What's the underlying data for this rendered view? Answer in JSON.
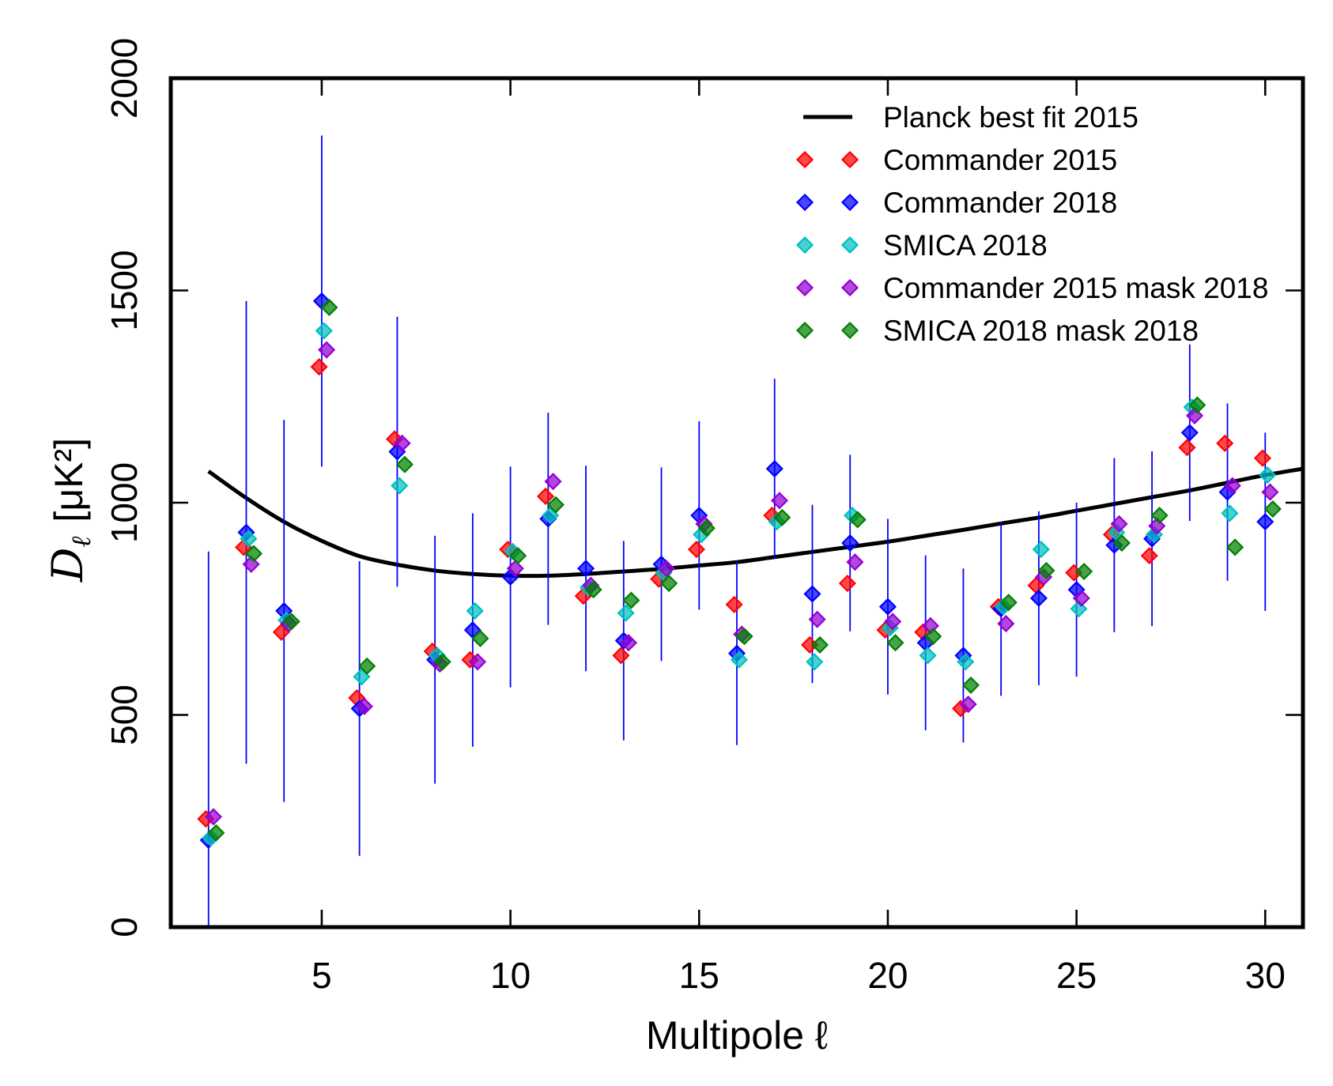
{
  "chart_data": {
    "type": "scatter",
    "xlabel": "Multipole ℓ",
    "ylabel": {
      "symbol": "D",
      "subscript": "ℓ",
      "unit": "[μK²]"
    },
    "xlim": [
      1,
      31
    ],
    "ylim": [
      0,
      2000
    ],
    "xticks": [
      5,
      10,
      15,
      20,
      25,
      30
    ],
    "yticks": [
      0,
      500,
      1000,
      1500,
      2000
    ],
    "grid": false,
    "legend_position": "top-right",
    "x": [
      2,
      3,
      4,
      5,
      6,
      7,
      8,
      9,
      10,
      11,
      12,
      13,
      14,
      15,
      16,
      17,
      18,
      19,
      20,
      21,
      22,
      23,
      24,
      25,
      26,
      27,
      28,
      29,
      30
    ],
    "series": [
      {
        "name": "Planck best fit 2015",
        "color": "#000000",
        "x": [
          2,
          3,
          4,
          5,
          6,
          7,
          8,
          9,
          10,
          11,
          12,
          13,
          14,
          15,
          16,
          17,
          18,
          19,
          20,
          21,
          22,
          23,
          24,
          25,
          26,
          27,
          28,
          29,
          30,
          31
        ],
        "values": [
          1074,
          1011,
          955,
          910,
          874,
          854,
          840,
          832,
          828,
          828,
          832,
          838,
          844,
          852,
          860,
          872,
          884,
          896,
          908,
          922,
          936,
          951,
          965,
          981,
          997,
          1013,
          1029,
          1047,
          1065,
          1080
        ]
      },
      {
        "name": "Commander 2015",
        "color": "#ff0000",
        "values": [
          255,
          895,
          695,
          1320,
          540,
          1150,
          650,
          630,
          890,
          1015,
          780,
          640,
          820,
          890,
          760,
          970,
          665,
          810,
          700,
          695,
          515,
          755,
          805,
          835,
          925,
          875,
          1130,
          1140,
          1105
        ]
      },
      {
        "name": "Commander 2018",
        "color": "#0000ff",
        "values": [
          205,
          930,
          745,
          1475,
          515,
          1120,
          630,
          700,
          825,
          962,
          845,
          675,
          855,
          970,
          645,
          1080,
          785,
          905,
          755,
          670,
          640,
          750,
          775,
          795,
          900,
          915,
          1165,
          1025,
          955
        ],
        "error": [
          680,
          545,
          450,
          390,
          347,
          318,
          292,
          275,
          260,
          250,
          242,
          235,
          228,
          222,
          216,
          212,
          210,
          208,
          207,
          206,
          205,
          205,
          205,
          205,
          205,
          206,
          208,
          209,
          210
        ]
      },
      {
        "name": "SMICA 2018",
        "color": "#00bfbf",
        "values": [
          210,
          915,
          723,
          1405,
          590,
          1040,
          640,
          745,
          885,
          970,
          800,
          740,
          835,
          925,
          630,
          955,
          625,
          970,
          705,
          640,
          625,
          755,
          890,
          750,
          930,
          925,
          1225,
          975,
          1065
        ]
      },
      {
        "name": "Commander 2015 mask 2018",
        "color": "#9400d3",
        "values": [
          260,
          855,
          715,
          1360,
          520,
          1140,
          620,
          625,
          845,
          1050,
          805,
          670,
          845,
          950,
          690,
          1005,
          725,
          860,
          720,
          710,
          525,
          715,
          825,
          775,
          950,
          945,
          1205,
          1040,
          1025
        ]
      },
      {
        "name": "SMICA 2018 mask 2018",
        "color": "#008000",
        "values": [
          222,
          880,
          720,
          1460,
          615,
          1090,
          625,
          680,
          875,
          995,
          795,
          770,
          810,
          940,
          685,
          965,
          665,
          960,
          670,
          685,
          570,
          765,
          840,
          838,
          905,
          970,
          1230,
          895,
          985
        ]
      }
    ]
  }
}
